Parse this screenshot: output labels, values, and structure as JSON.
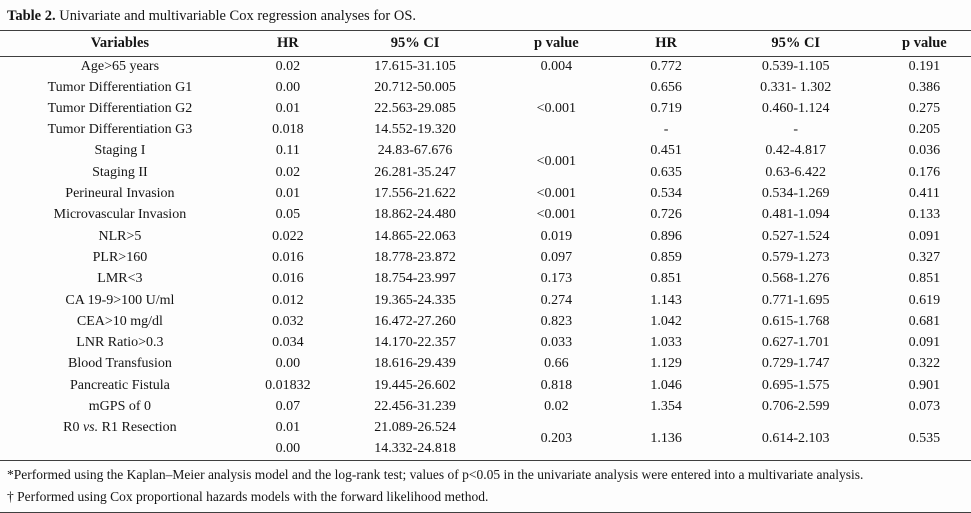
{
  "page": {
    "title": {
      "label": "Table 2.",
      "text": " Univariate and multivariable Cox regression analyses for OS."
    }
  },
  "colors": {
    "rule": "#3f3f3f",
    "text": "#151515",
    "background": "#fdfdfd"
  },
  "table": {
    "headers": [
      "Variables",
      "HR",
      "95% CI",
      "p value",
      "HR",
      "95% CI",
      "p value"
    ],
    "rows": [
      {
        "variable": "Age>65 years",
        "u_hr": "0.02",
        "u_ci": "17.615-31.105",
        "u_p": "0.004",
        "m_hr": "0.772",
        "m_ci": "0.539-1.105",
        "m_p": "0.191"
      },
      {
        "variable": "Tumor Differentiation G1",
        "u_hr": "0.00",
        "u_ci": "20.712-50.005",
        "u_p": "",
        "m_hr": "0.656",
        "m_ci": "0.331- 1.302",
        "m_p": "0.386"
      },
      {
        "variable": "Tumor Differentiation G2",
        "u_hr": "0.01",
        "u_ci": "22.563-29.085",
        "u_p": "<0.001",
        "m_hr": "0.719",
        "m_ci": "0.460-1.124",
        "m_p": "0.275"
      },
      {
        "variable": "Tumor Differentiation G3",
        "u_hr": "0.018",
        "u_ci": "14.552-19.320",
        "u_p": "",
        "m_hr": "-",
        "m_ci": "-",
        "m_p": "0.205"
      },
      {
        "variable": "Staging I",
        "u_hr": "0.11",
        "u_ci": "24.83-67.676",
        "u_p": "<0.001",
        "m_hr": "0.451",
        "m_ci": "0.42-4.817",
        "m_p": "0.036"
      },
      {
        "variable": "Staging II",
        "u_hr": "0.02",
        "u_ci": "26.281-35.247",
        "m_hr": "0.635",
        "m_ci": "0.63-6.422",
        "m_p": "0.176"
      },
      {
        "variable": "Perineural Invasion",
        "u_hr": "0.01",
        "u_ci": "17.556-21.622",
        "u_p": "<0.001",
        "m_hr": "0.534",
        "m_ci": "0.534-1.269",
        "m_p": "0.411"
      },
      {
        "variable": "Microvascular Invasion",
        "u_hr": "0.05",
        "u_ci": "18.862-24.480",
        "u_p": "<0.001",
        "m_hr": "0.726",
        "m_ci": "0.481-1.094",
        "m_p": "0.133"
      },
      {
        "variable": "NLR>5",
        "u_hr": "0.022",
        "u_ci": "14.865-22.063",
        "u_p": "0.019",
        "m_hr": "0.896",
        "m_ci": "0.527-1.524",
        "m_p": "0.091"
      },
      {
        "variable": "PLR>160",
        "u_hr": "0.016",
        "u_ci": "18.778-23.872",
        "u_p": "0.097",
        "m_hr": "0.859",
        "m_ci": "0.579-1.273",
        "m_p": "0.327"
      },
      {
        "variable": "LMR<3",
        "u_hr": "0.016",
        "u_ci": "18.754-23.997",
        "u_p": "0.173",
        "m_hr": "0.851",
        "m_ci": "0.568-1.276",
        "m_p": "0.851"
      },
      {
        "variable": "CA 19-9>100 U/ml",
        "u_hr": "0.012",
        "u_ci": "19.365-24.335",
        "u_p": "0.274",
        "m_hr": "1.143",
        "m_ci": "0.771-1.695",
        "m_p": "0.619"
      },
      {
        "variable": "CEA>10 mg/dl",
        "u_hr": "0.032",
        "u_ci": "16.472-27.260",
        "u_p": "0.823",
        "m_hr": "1.042",
        "m_ci": "0.615-1.768",
        "m_p": "0.681"
      },
      {
        "variable": "LNR Ratio>0.3",
        "u_hr": "0.034",
        "u_ci": "14.170-22.357",
        "u_p": "0.033",
        "m_hr": "1.033",
        "m_ci": "0.627-1.701",
        "m_p": "0.091"
      },
      {
        "variable": "Blood Transfusion",
        "u_hr": "0.00",
        "u_ci": "18.616-29.439",
        "u_p": "0.66",
        "m_hr": "1.129",
        "m_ci": "0.729-1.747",
        "m_p": "0.322"
      },
      {
        "variable": "Pancreatic Fistula",
        "u_hr": "0.01832",
        "u_ci": "19.445-26.602",
        "u_p": "0.818",
        "m_hr": "1.046",
        "m_ci": "0.695-1.575",
        "m_p": "0.901"
      },
      {
        "variable": "mGPS of 0",
        "u_hr": "0.07",
        "u_ci": "22.456-31.239",
        "u_p": "0.02",
        "m_hr": "1.354",
        "m_ci": "0.706-2.599",
        "m_p": "0.073"
      },
      {
        "var_pre": "R0 ",
        "var_vs": "vs.",
        "var_post": " R1 Resection",
        "u_hr": "0.01",
        "u_ci": "21.089-26.524",
        "u_p": "0.203",
        "m_hr": "1.136",
        "m_ci": "0.614-2.103",
        "m_p": "0.535"
      },
      {
        "variable": "",
        "u_hr": "0.00",
        "u_ci": "14.332-24.818"
      }
    ],
    "footnotes": [
      "*Performed using the Kaplan–Meier analysis model and the log-rank test; values of p<0.05 in the univariate analysis were entered into a multivariate analysis.",
      "† Performed using Cox proportional hazards models with the forward likelihood method."
    ]
  }
}
